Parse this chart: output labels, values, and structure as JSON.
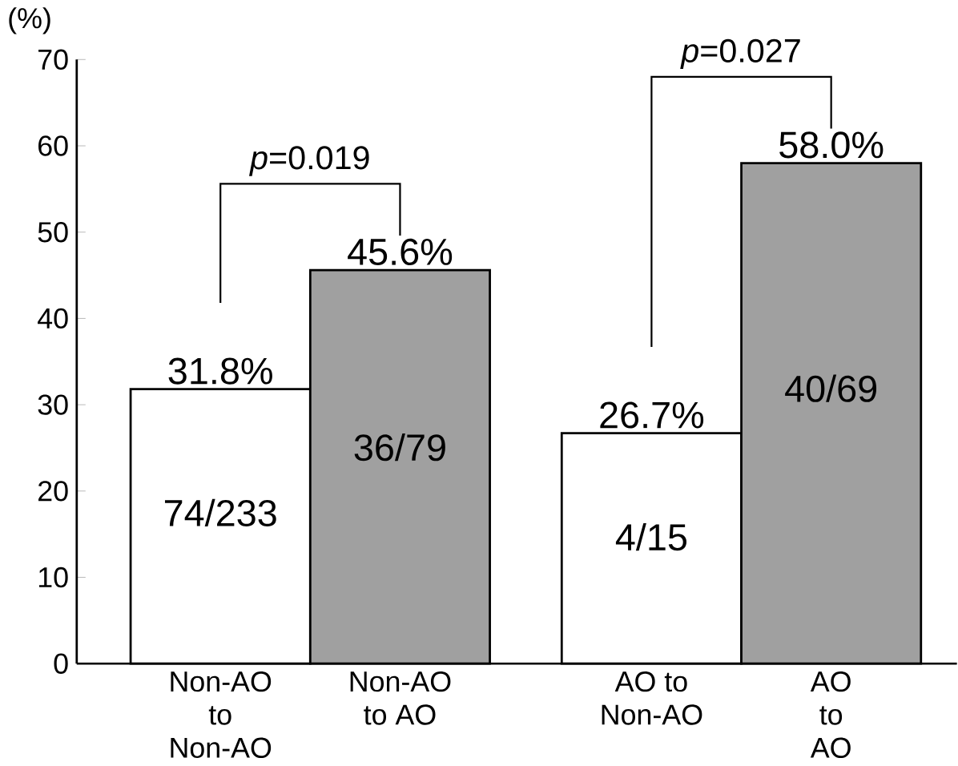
{
  "chart_data": {
    "type": "bar",
    "ylabel": "(%)",
    "categories": [
      "Non-AO to Non-AO",
      "Non-AO to AO",
      "AO to Non-AO",
      "AO to AO"
    ],
    "values": [
      31.8,
      45.6,
      26.7,
      58.0
    ],
    "colors": [
      "#ffffff",
      "#a0a0a0",
      "#ffffff",
      "#a0a0a0"
    ],
    "value_labels": [
      "31.8%",
      "45.6%",
      "26.7%",
      "58.0%"
    ],
    "ylim": [
      0,
      70
    ],
    "yticks": [
      0,
      10,
      20,
      30,
      40,
      50,
      60,
      70
    ],
    "annotations": [
      "74/233",
      "36/79",
      "4/15",
      "40/69",
      "*p*=0.019",
      "*p*=0.027"
    ]
  }
}
